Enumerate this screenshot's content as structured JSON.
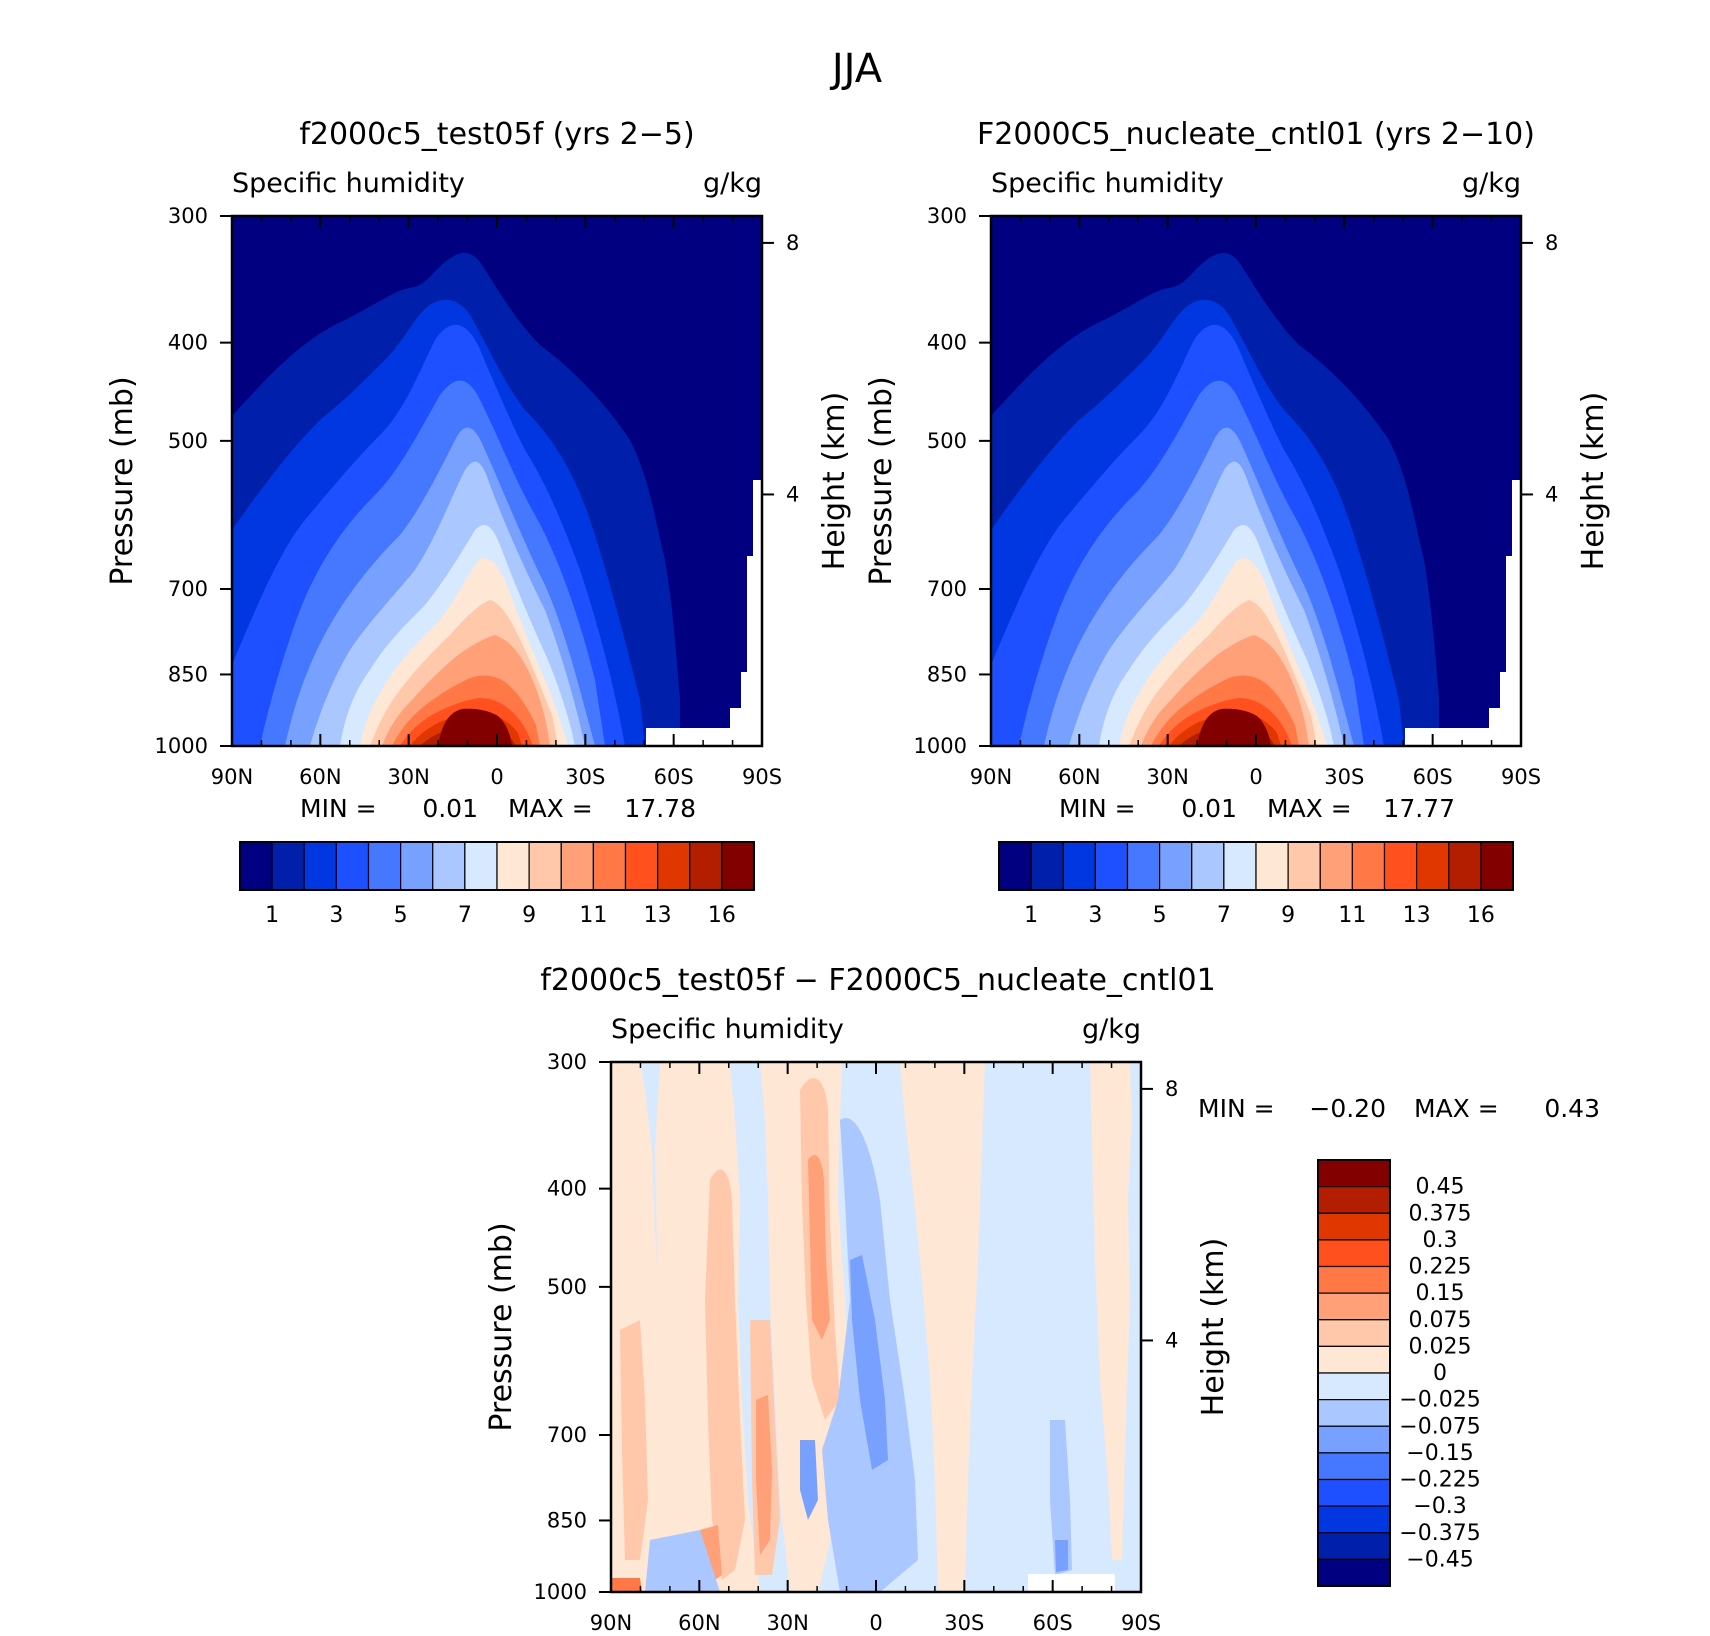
{
  "figure": {
    "title": "JJA"
  },
  "chart_data": [
    {
      "type": "contour",
      "title": "f2000c5_test05f (yrs 2-5)",
      "left_label": "Specific humidity",
      "units": "g/kg",
      "ylabel": "Pressure (mb)",
      "ylabel_right": "Height (km)",
      "x_ticks": [
        "90N",
        "60N",
        "30N",
        "0",
        "30S",
        "60S",
        "90S"
      ],
      "y_ticks": [
        300,
        400,
        500,
        700,
        850,
        1000
      ],
      "y_right_ticks": [
        8,
        4
      ],
      "ylim": [
        1000,
        300
      ],
      "min_label": "MIN =",
      "min_value": "0.01",
      "max_label": "MAX =",
      "max_value": "17.78",
      "colorbar_labels": [
        "1",
        "3",
        "5",
        "7",
        "9",
        "11",
        "13",
        "16"
      ],
      "levels": [
        1,
        2,
        3,
        4,
        5,
        6,
        7,
        8,
        9,
        10,
        11,
        12,
        13,
        14,
        16
      ]
    },
    {
      "type": "contour",
      "title": "F2000C5_nucleate_cntl01 (yrs 2-10)",
      "left_label": "Specific humidity",
      "units": "g/kg",
      "ylabel": "Pressure (mb)",
      "ylabel_right": "Height (km)",
      "x_ticks": [
        "90N",
        "60N",
        "30N",
        "0",
        "30S",
        "60S",
        "90S"
      ],
      "y_ticks": [
        300,
        400,
        500,
        700,
        850,
        1000
      ],
      "y_right_ticks": [
        8,
        4
      ],
      "ylim": [
        1000,
        300
      ],
      "min_label": "MIN =",
      "min_value": "0.01",
      "max_label": "MAX =",
      "max_value": "17.77",
      "colorbar_labels": [
        "1",
        "3",
        "5",
        "7",
        "9",
        "11",
        "13",
        "16"
      ],
      "levels": [
        1,
        2,
        3,
        4,
        5,
        6,
        7,
        8,
        9,
        10,
        11,
        12,
        13,
        14,
        16
      ]
    },
    {
      "type": "contour",
      "title": "f2000c5_test05f - F2000C5_nucleate_cntl01",
      "left_label": "Specific humidity",
      "units": "g/kg",
      "ylabel": "Pressure (mb)",
      "ylabel_right": "Height (km)",
      "x_ticks": [
        "90N",
        "60N",
        "30N",
        "0",
        "30S",
        "60S",
        "90S"
      ],
      "y_ticks": [
        300,
        400,
        500,
        700,
        850,
        1000
      ],
      "y_right_ticks": [
        8,
        4
      ],
      "ylim": [
        1000,
        300
      ],
      "min_label": "MIN =",
      "min_value": "-0.20",
      "max_label": "MAX =",
      "max_value": "0.43",
      "colorbar_labels": [
        "0.45",
        "0.375",
        "0.3",
        "0.225",
        "0.15",
        "0.075",
        "0.025",
        "0",
        "-0.025",
        "-0.075",
        "-0.15",
        "-0.225",
        "-0.3",
        "-0.375",
        "-0.45"
      ]
    }
  ],
  "colors": {
    "humidity_scale": [
      "#000080",
      "#0020ac",
      "#0037e0",
      "#1e50ff",
      "#4678ff",
      "#78a0ff",
      "#aac8ff",
      "#d7e9ff",
      "#ffe7d5",
      "#ffc8aa",
      "#ffa078",
      "#ff7846",
      "#ff501e",
      "#e03700",
      "#b41e00",
      "#820000"
    ],
    "diff_scale_top_to_bottom": [
      "#820000",
      "#b41e00",
      "#e03700",
      "#ff501e",
      "#ff7846",
      "#ffa078",
      "#ffc8aa",
      "#ffe7d5",
      "#d7e9ff",
      "#aac8ff",
      "#78a0ff",
      "#4678ff",
      "#1e50ff",
      "#0037e0",
      "#0020ac",
      "#000080"
    ]
  }
}
